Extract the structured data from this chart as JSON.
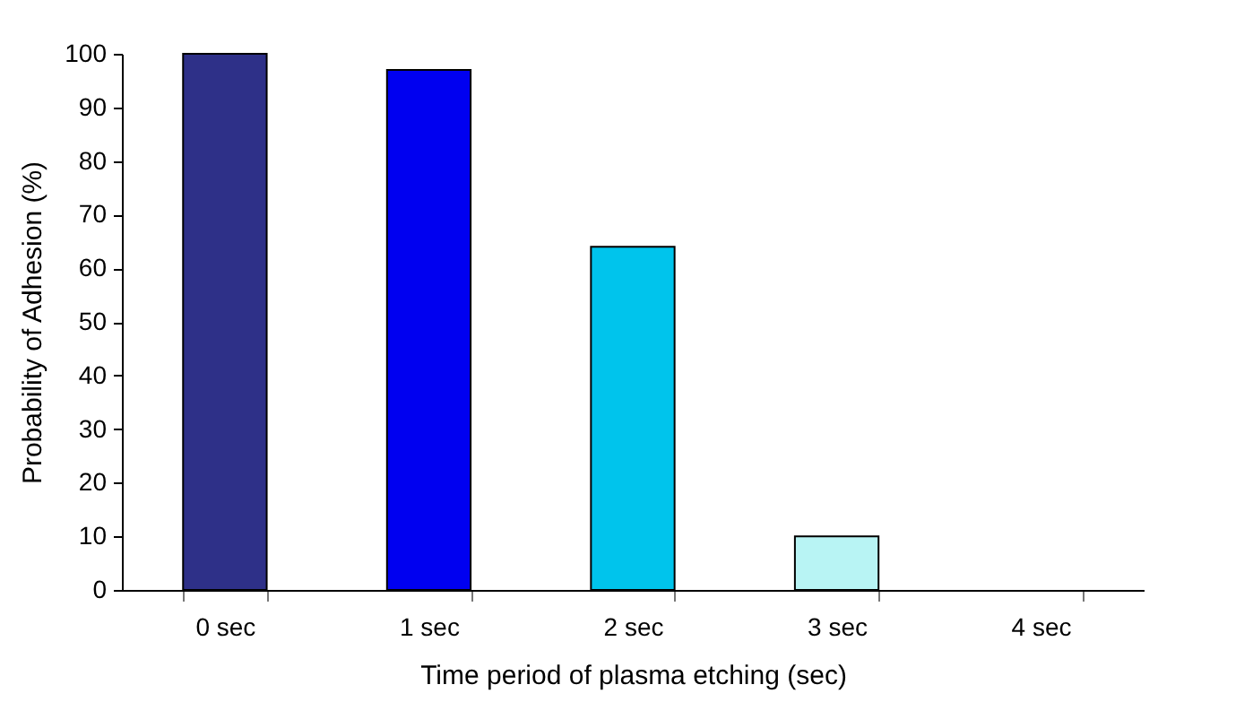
{
  "chart_data": {
    "type": "bar",
    "xlabel": "Time period of plasma etching (sec)",
    "ylabel": "Probability of Adhesion (%)",
    "categories": [
      "0 sec",
      "1 sec",
      "2 sec",
      "3 sec",
      "4 sec"
    ],
    "values": [
      100,
      97,
      64,
      10,
      0
    ],
    "colors": [
      "#2e3088",
      "#0000f0",
      "#00c4ec",
      "#b8f4f4",
      "#b8f4f4"
    ],
    "ylim": [
      0,
      100
    ],
    "yticks": [
      0,
      10,
      20,
      30,
      40,
      50,
      60,
      70,
      80,
      90,
      100
    ],
    "grid": false,
    "legend": false
  }
}
